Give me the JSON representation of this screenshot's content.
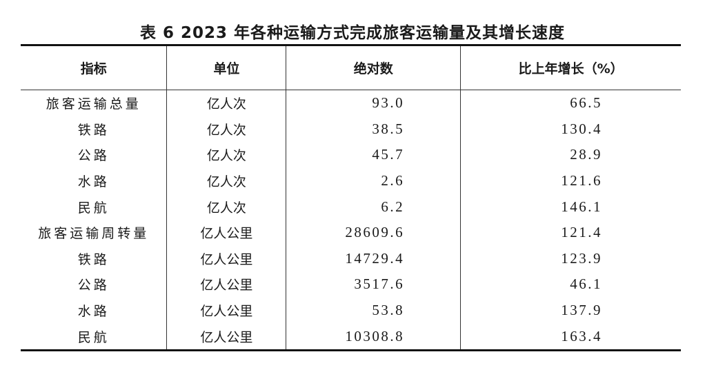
{
  "title": "表 6   2023 年各种运输方式完成旅客运输量及其增长速度",
  "headers": [
    "指标",
    "单位",
    "绝对数",
    "比上年增长（%）"
  ],
  "rows": [
    {
      "indicator": "旅客运输总量",
      "unit": "亿人次",
      "value": "93.0",
      "growth": "66.5"
    },
    {
      "indicator": "铁路",
      "unit": "亿人次",
      "value": "38.5",
      "growth": "130.4"
    },
    {
      "indicator": "公路",
      "unit": "亿人次",
      "value": "45.7",
      "growth": "28.9"
    },
    {
      "indicator": "水路",
      "unit": "亿人次",
      "value": "2.6",
      "growth": "121.6"
    },
    {
      "indicator": "民航",
      "unit": "亿人次",
      "value": "6.2",
      "growth": "146.1"
    },
    {
      "indicator": "旅客运输周转量",
      "unit": "亿人公里",
      "value": "28609.6",
      "growth": "121.4"
    },
    {
      "indicator": "铁路",
      "unit": "亿人公里",
      "value": "14729.4",
      "growth": "123.9"
    },
    {
      "indicator": "公路",
      "unit": "亿人公里",
      "value": "3517.6",
      "growth": "46.1"
    },
    {
      "indicator": "水路",
      "unit": "亿人公里",
      "value": "53.8",
      "growth": "137.9"
    },
    {
      "indicator": "民航",
      "unit": "亿人公里",
      "value": "10308.8",
      "growth": "163.4"
    }
  ]
}
